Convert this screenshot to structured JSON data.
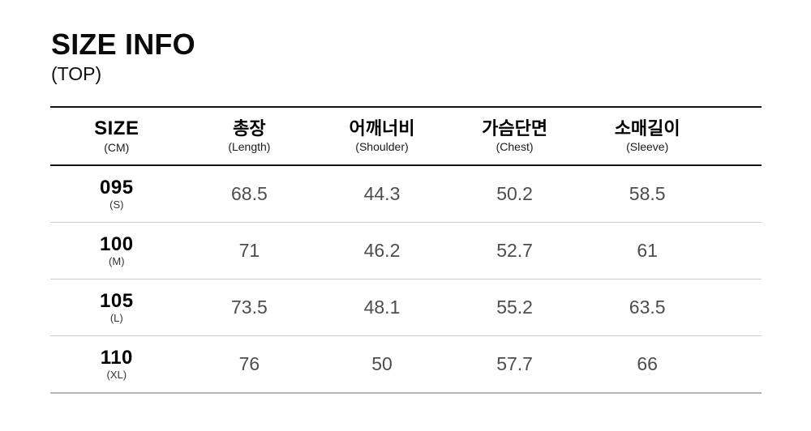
{
  "chart_data": {
    "type": "table",
    "title": "SIZE INFO",
    "subtitle": "(TOP)",
    "unit": "CM",
    "columns": [
      {
        "label": "SIZE",
        "sublabel": "(CM)"
      },
      {
        "label": "총장",
        "sublabel": "(Length)"
      },
      {
        "label": "어깨너비",
        "sublabel": "(Shoulder)"
      },
      {
        "label": "가슴단면",
        "sublabel": "(Chest)"
      },
      {
        "label": "소매길이",
        "sublabel": "(Sleeve)"
      }
    ],
    "rows": [
      {
        "size": "095",
        "grade": "(S)",
        "values": [
          "68.5",
          "44.3",
          "50.2",
          "58.5"
        ]
      },
      {
        "size": "100",
        "grade": "(M)",
        "values": [
          "71",
          "46.2",
          "52.7",
          "61"
        ]
      },
      {
        "size": "105",
        "grade": "(L)",
        "values": [
          "73.5",
          "48.1",
          "55.2",
          "63.5"
        ]
      },
      {
        "size": "110",
        "grade": "(XL)",
        "values": [
          "76",
          "50",
          "57.7",
          "66"
        ]
      }
    ]
  },
  "colors": {
    "background": "#ffffff",
    "text_primary": "#000000",
    "text_values": "#4d4d4d",
    "border_dark": "#141414",
    "border_row_separator": "#cccccc",
    "border_bottom": "#b5b5b5"
  }
}
